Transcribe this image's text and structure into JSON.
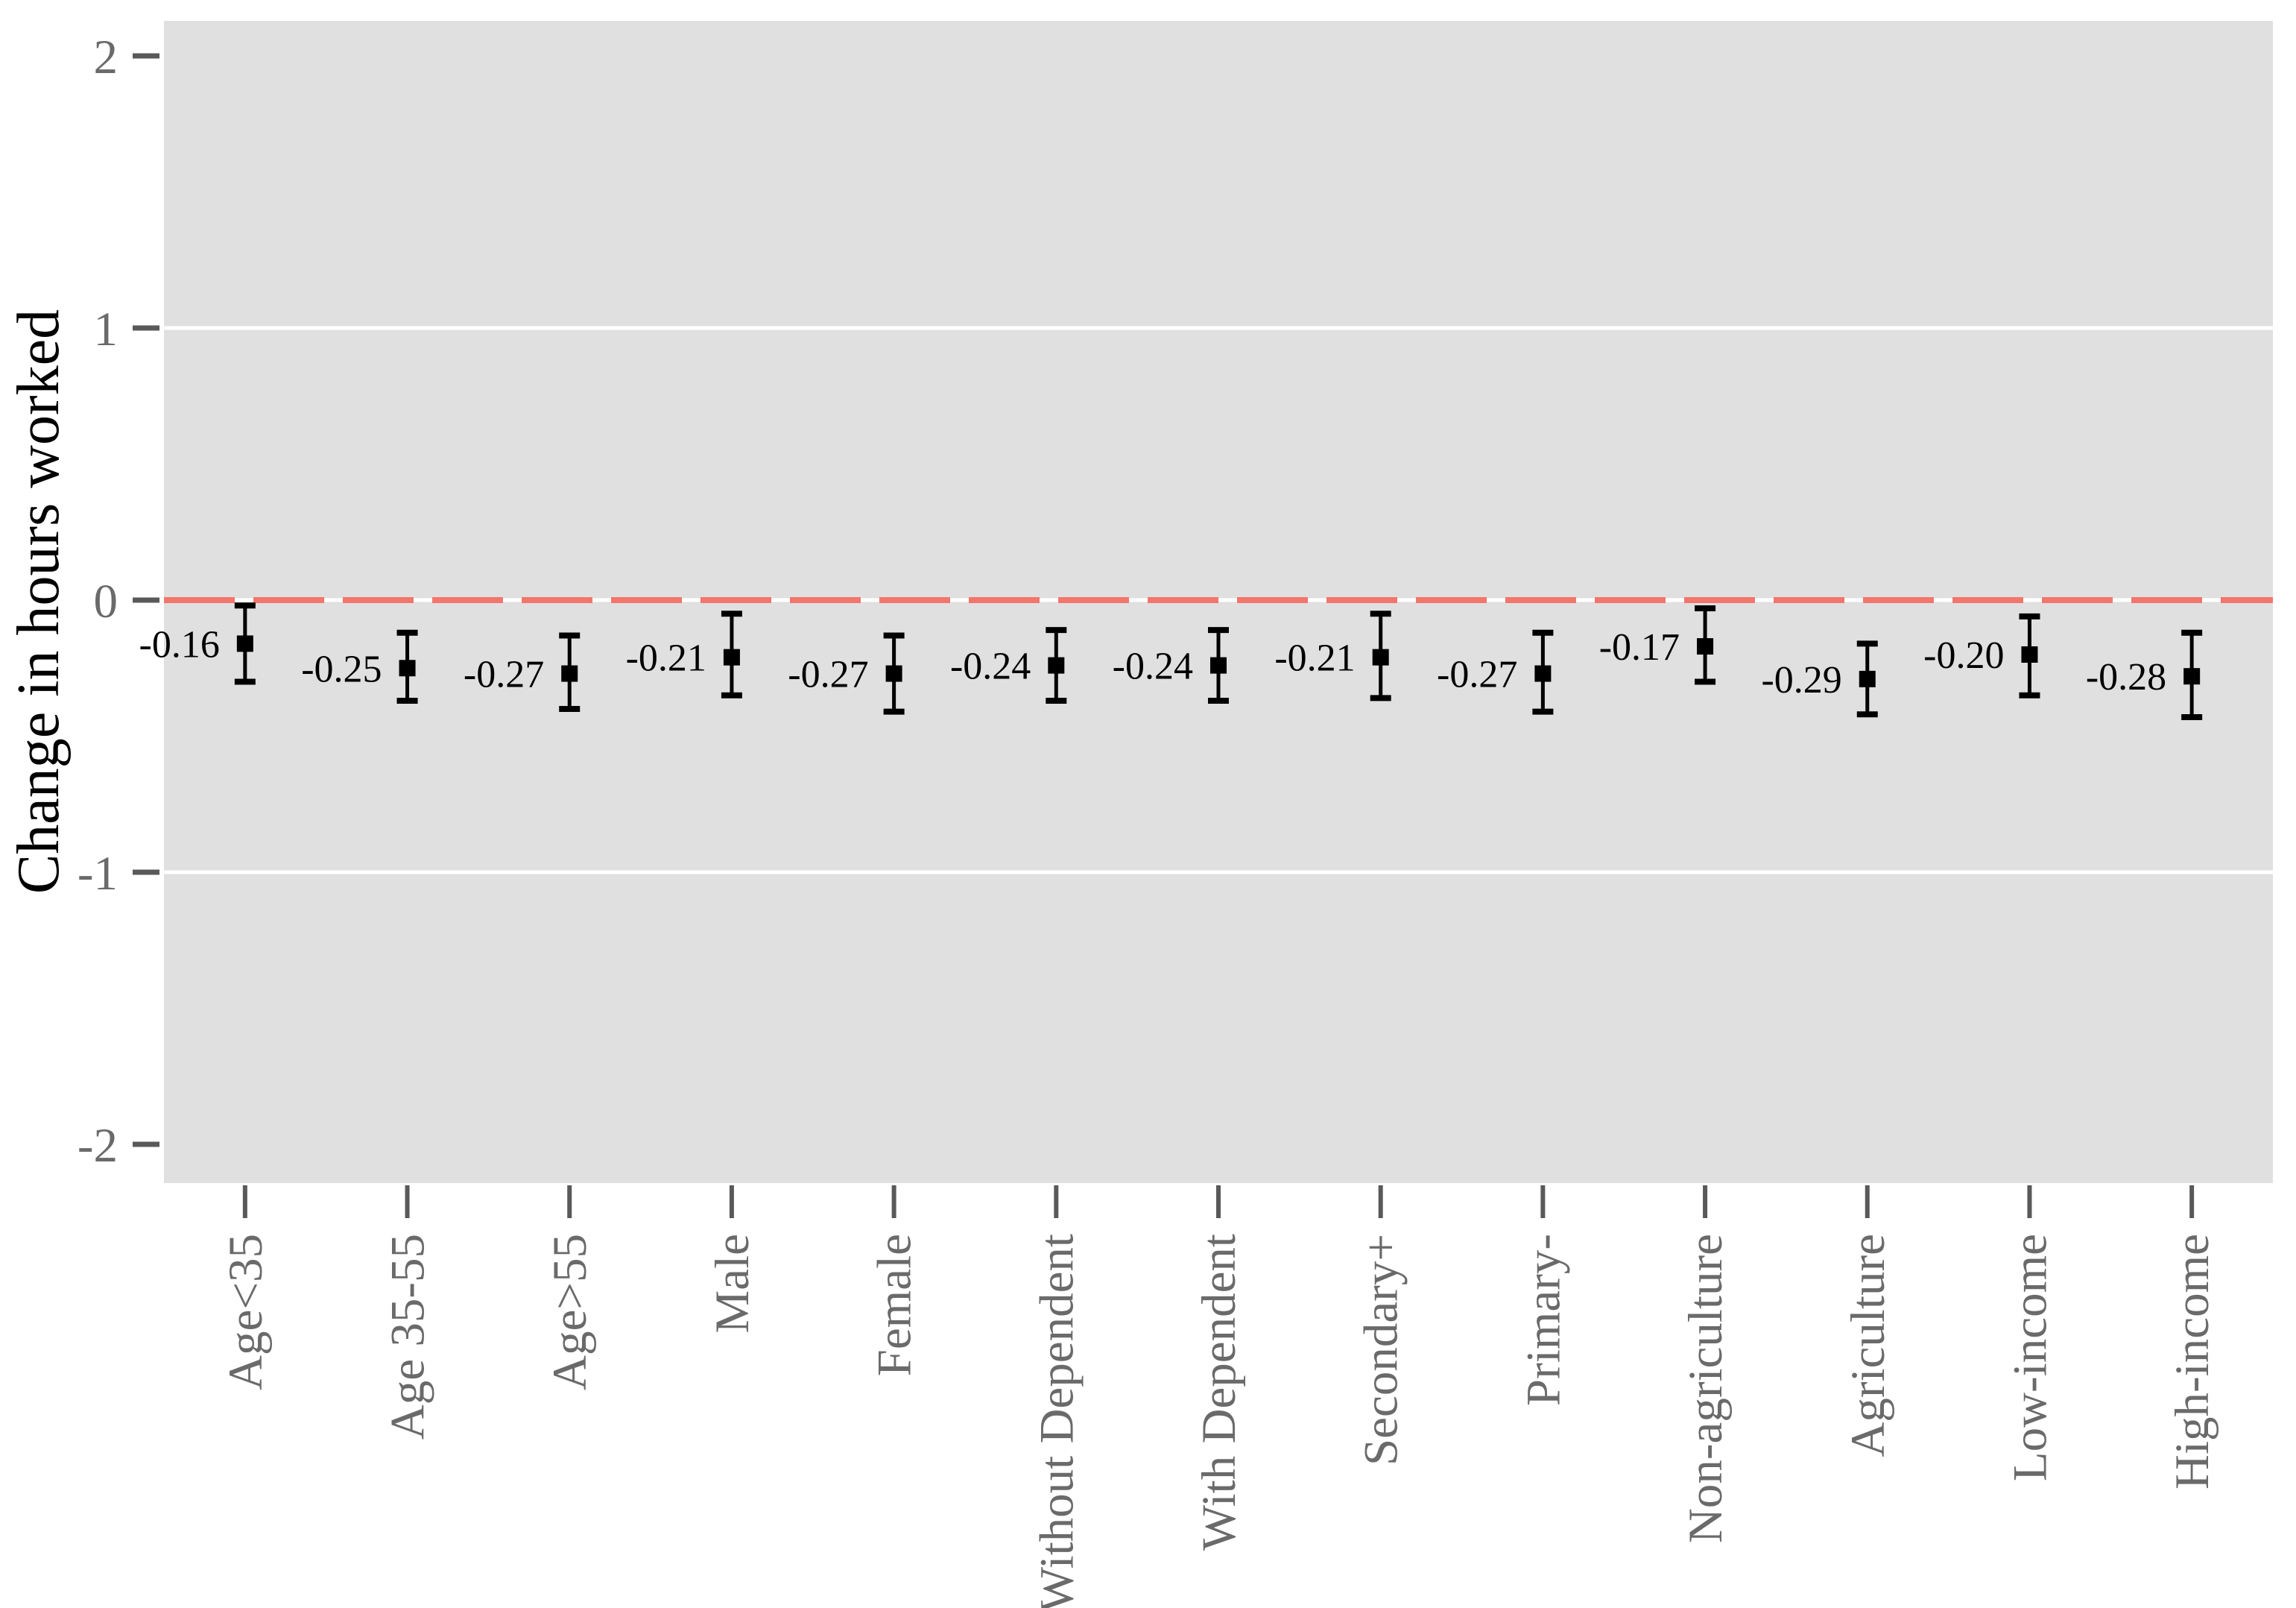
{
  "chart_data": {
    "type": "scatter",
    "variant": "coefficient-plot-with-error-bars",
    "title": "",
    "xlabel": "",
    "ylabel": "Change in hours worked",
    "ylim": [
      -2.13,
      2.13
    ],
    "yticks": [
      2,
      1,
      0,
      -1,
      -2
    ],
    "ytick_labels": [
      "2",
      "1",
      "0",
      "-1",
      "-2"
    ],
    "gridline_y_values": [
      1,
      0,
      -1
    ],
    "reference_line_y": 0,
    "reference_line_style": "dashed",
    "grid": true,
    "legend_position": "none",
    "categories": [
      "Age<35",
      "Age 35-55",
      "Age>55",
      "Male",
      "Female",
      "Without Dependent",
      "With Dependent",
      "Secondary+",
      "Primary-",
      "Non-agriculture",
      "Agriculture",
      "Low-income",
      "High-income"
    ],
    "series": [
      {
        "name": "point-estimates",
        "marker": "filled-square",
        "values": [
          -0.16,
          -0.25,
          -0.27,
          -0.21,
          -0.27,
          -0.24,
          -0.24,
          -0.21,
          -0.27,
          -0.17,
          -0.29,
          -0.2,
          -0.28
        ],
        "value_labels": [
          "-0.16",
          "-0.25",
          "-0.27",
          "-0.21",
          "-0.27",
          "-0.24",
          "-0.24",
          "-0.21",
          "-0.27",
          "-0.17",
          "-0.29",
          "-0.20",
          "-0.28"
        ],
        "ci_low": [
          -0.3,
          -0.37,
          -0.4,
          -0.35,
          -0.41,
          -0.37,
          -0.37,
          -0.36,
          -0.41,
          -0.3,
          -0.42,
          -0.35,
          -0.43
        ],
        "ci_high": [
          -0.02,
          -0.12,
          -0.13,
          -0.05,
          -0.13,
          -0.11,
          -0.11,
          -0.05,
          -0.12,
          -0.03,
          -0.16,
          -0.06,
          -0.12
        ]
      }
    ],
    "colors": {
      "figure_background": "#ffffff",
      "panel_background": "#e0e0e0",
      "gridline": "#ffffff",
      "reference_line": "#f4756c",
      "error_bar": "#000000",
      "marker": "#000000",
      "value_label_text": "#000000",
      "axis_title_text": "#000000",
      "tick_label_text": "#6a6a6a",
      "tick_mark": "#595959"
    }
  }
}
